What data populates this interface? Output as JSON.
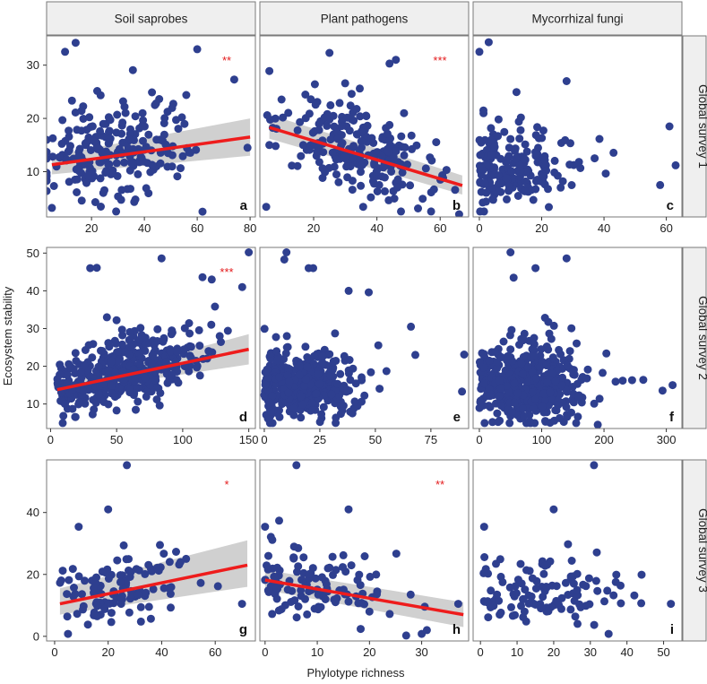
{
  "chart_data": {
    "type": "scatter",
    "layout": "faceted grid (3 rows x 3 columns)",
    "xlabel": "Phylotype richness",
    "ylabel": "Ecosystem stability",
    "columns": [
      "Soil saprobes",
      "Plant pathogens",
      "Mycorrhizal fungi"
    ],
    "rows": [
      "Global survey 1",
      "Global survey 2",
      "Global survey 3"
    ],
    "colors": {
      "points": "#2e3f8f",
      "fit": "#ee1c1c",
      "band": "#c8c8c8",
      "significance": "#e41a1c",
      "strip": "#efefef",
      "frame": "#7a7a7a"
    },
    "panels": [
      {
        "letter": "a",
        "row": 0,
        "col": 0,
        "significance": "**",
        "xlim": [
          3,
          82
        ],
        "ylim": [
          1.5,
          35.5
        ],
        "xticks": [
          20,
          40,
          60,
          80
        ],
        "yticks": [
          10,
          20,
          30
        ],
        "n": 220,
        "seed": 11,
        "xmean": 28,
        "xsd": 13,
        "ymean": 13,
        "ysd": 5,
        "fit": {
          "x": [
            5,
            80
          ],
          "y": [
            11.3,
            16.5
          ]
        },
        "band": {
          "lo": [
            9.5,
            13.0
          ],
          "hi": [
            13.0,
            20.0
          ]
        },
        "outliers": [
          [
            14,
            34.2
          ],
          [
            10,
            32.5
          ],
          [
            60,
            33
          ],
          [
            74,
            27.3
          ],
          [
            62,
            2.5
          ],
          [
            5,
            3.2
          ],
          [
            79,
            14.5
          ]
        ]
      },
      {
        "letter": "b",
        "row": 0,
        "col": 1,
        "significance": "***",
        "xlim": [
          3,
          69
        ],
        "ylim": [
          1.5,
          35.5
        ],
        "xticks": [
          20,
          40,
          60
        ],
        "yticks": [
          10,
          20,
          30
        ],
        "n": 220,
        "seed": 23,
        "xmean": 33,
        "xsd": 11,
        "ymean": 12.5,
        "ysd": 5,
        "fit": {
          "x": [
            6,
            67
          ],
          "y": [
            18.3,
            7.4
          ]
        },
        "band": {
          "lo": [
            16.2,
            5.7
          ],
          "hi": [
            20.7,
            9.3
          ]
        },
        "outliers": [
          [
            25,
            32.3
          ],
          [
            44,
            30.3
          ],
          [
            46,
            31
          ],
          [
            6,
            28.9
          ],
          [
            5,
            3.4
          ],
          [
            53,
            3.1
          ],
          [
            66,
            2.0
          ]
        ]
      },
      {
        "letter": "c",
        "row": 0,
        "col": 2,
        "significance": "",
        "xlim": [
          -2,
          65
        ],
        "ylim": [
          1.5,
          35.5
        ],
        "xticks": [
          0,
          20,
          40,
          60
        ],
        "yticks": [
          10,
          20,
          30
        ],
        "n": 200,
        "seed": 37,
        "xmean": 10,
        "xsd": 10,
        "ymean": 10.5,
        "ysd": 4.5,
        "xmin": 0,
        "fit": null,
        "band": null,
        "outliers": [
          [
            3,
            34.3
          ],
          [
            0,
            32.5
          ],
          [
            28,
            27
          ],
          [
            63,
            11.2
          ],
          [
            61,
            18.5
          ],
          [
            58,
            7.5
          ],
          [
            37,
            12.5
          ]
        ]
      },
      {
        "letter": "d",
        "row": 1,
        "col": 0,
        "significance": "***",
        "xlim": [
          -3,
          155
        ],
        "ylim": [
          3.5,
          51.5
        ],
        "xticks": [
          0,
          50,
          100,
          150
        ],
        "yticks": [
          10,
          20,
          30,
          40,
          50
        ],
        "n": 450,
        "seed": 41,
        "xmean": 55,
        "xsd": 28,
        "ymean": 14.5,
        "ysd": 5,
        "xmin": 5,
        "fit": {
          "x": [
            5,
            150
          ],
          "y": [
            13.8,
            24.5
          ]
        },
        "band": {
          "lo": [
            12.8,
            20.5
          ],
          "hi": [
            15.0,
            28.5
          ]
        },
        "outliers": [
          [
            150,
            50.2
          ],
          [
            115,
            43.6
          ],
          [
            122,
            43
          ],
          [
            84,
            48.6
          ],
          [
            30,
            46
          ],
          [
            35,
            46.1
          ],
          [
            145,
            41
          ],
          [
            128,
            28
          ]
        ]
      },
      {
        "letter": "e",
        "row": 1,
        "col": 1,
        "significance": "",
        "xlim": [
          -2,
          92
        ],
        "ylim": [
          3.5,
          51.5
        ],
        "xticks": [
          0,
          25,
          50,
          75
        ],
        "yticks": [
          10,
          20,
          30,
          40,
          50
        ],
        "n": 420,
        "seed": 53,
        "xmean": 17,
        "xsd": 11,
        "ymean": 14.5,
        "ysd": 5,
        "xmin": 0,
        "fit": null,
        "band": null,
        "outliers": [
          [
            10,
            50.2
          ],
          [
            9,
            48.3
          ],
          [
            20,
            46
          ],
          [
            22,
            46
          ],
          [
            38,
            40
          ],
          [
            47,
            39.6
          ],
          [
            66,
            30.5
          ],
          [
            90,
            23.1
          ],
          [
            89,
            13.3
          ],
          [
            68,
            23
          ]
        ]
      },
      {
        "letter": "f",
        "row": 1,
        "col": 2,
        "significance": "",
        "xlim": [
          -10,
          325
        ],
        "ylim": [
          3.5,
          51.5
        ],
        "xticks": [
          0,
          100,
          200,
          300
        ],
        "yticks": [
          10,
          20,
          30,
          40,
          50
        ],
        "n": 450,
        "seed": 67,
        "xmean": 75,
        "xsd": 45,
        "ymean": 14.5,
        "ysd": 5.5,
        "xmin": 0,
        "fit": null,
        "band": null,
        "outliers": [
          [
            50,
            50.2
          ],
          [
            140,
            48.6
          ],
          [
            90,
            46
          ],
          [
            55,
            43.5
          ],
          [
            190,
            4.5
          ],
          [
            310,
            15
          ],
          [
            263,
            16.4
          ],
          [
            230,
            16.2
          ],
          [
            245,
            16.3
          ]
        ]
      },
      {
        "letter": "g",
        "row": 2,
        "col": 0,
        "significance": "*",
        "xlim": [
          -3,
          75
        ],
        "ylim": [
          -1.5,
          57
        ],
        "xticks": [
          0,
          20,
          40,
          60
        ],
        "yticks": [
          0,
          20,
          40
        ],
        "n": 110,
        "seed": 71,
        "xmean": 25,
        "xsd": 13,
        "ymean": 13,
        "ysd": 7,
        "xmin": 1,
        "fit": {
          "x": [
            2,
            72
          ],
          "y": [
            10.5,
            23.0
          ]
        },
        "band": {
          "lo": [
            7.0,
            16.0
          ],
          "hi": [
            15.5,
            31.0
          ]
        },
        "outliers": [
          [
            27,
            55.3
          ],
          [
            20,
            41
          ],
          [
            9,
            35.4
          ],
          [
            70,
            10.5
          ],
          [
            61,
            16.2
          ],
          [
            5,
            0.8
          ]
        ]
      },
      {
        "letter": "h",
        "row": 2,
        "col": 1,
        "significance": "**",
        "xlim": [
          -1,
          39
        ],
        "ylim": [
          -1.5,
          57
        ],
        "xticks": [
          0,
          10,
          20,
          30
        ],
        "yticks": [
          0,
          20,
          40
        ],
        "n": 110,
        "seed": 83,
        "xmean": 10,
        "xsd": 7.5,
        "ymean": 13,
        "ysd": 7,
        "xmin": 0,
        "fit": {
          "x": [
            0,
            38
          ],
          "y": [
            18.2,
            7.0
          ]
        },
        "band": {
          "lo": [
            15.0,
            3.0
          ],
          "hi": [
            21.5,
            11.0
          ]
        },
        "outliers": [
          [
            6,
            55.3
          ],
          [
            16,
            41
          ],
          [
            0,
            35.4
          ],
          [
            37,
            10.5
          ],
          [
            30,
            0.8
          ],
          [
            31,
            2
          ],
          [
            20,
            8
          ]
        ]
      },
      {
        "letter": "i",
        "row": 2,
        "col": 2,
        "significance": "",
        "xlim": [
          -2,
          55
        ],
        "ylim": [
          -1.5,
          57
        ],
        "xticks": [
          0,
          10,
          20,
          30,
          40,
          50
        ],
        "yticks": [
          0,
          20,
          40
        ],
        "n": 110,
        "seed": 97,
        "xmean": 17,
        "xsd": 11,
        "ymean": 13,
        "ysd": 7,
        "xmin": 0,
        "fit": null,
        "band": null,
        "outliers": [
          [
            31,
            55.3
          ],
          [
            20,
            41
          ],
          [
            52,
            10.5
          ],
          [
            44,
            19.9
          ],
          [
            1,
            35.4
          ],
          [
            35,
            0.8
          ],
          [
            42,
            13.2
          ]
        ]
      }
    ]
  }
}
